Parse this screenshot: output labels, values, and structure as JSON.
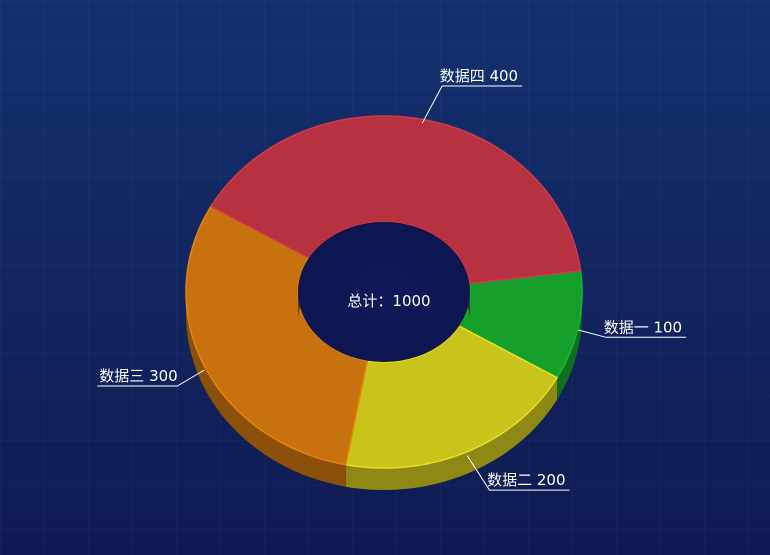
{
  "chart_data": {
    "type": "pie",
    "subtype": "3d-donut",
    "categories": [
      "数据一",
      "数据二",
      "数据三",
      "数据四"
    ],
    "values": [
      100,
      200,
      300,
      400
    ],
    "labels": [
      "数据一 100",
      "数据二 200",
      "数据三 300",
      "数据四 400"
    ],
    "colors": [
      "#14a02a",
      "#c9c41c",
      "#c8720f",
      "#b73240"
    ],
    "center_label": "总计：1000",
    "legend": "none",
    "grid": false
  },
  "theme": {
    "background_top": "#13316e",
    "background_bottom": "#101a52"
  }
}
